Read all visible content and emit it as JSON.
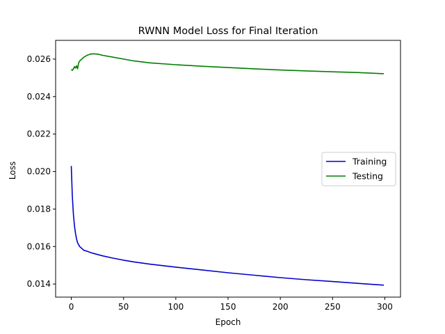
{
  "chart_data": {
    "type": "line",
    "title": "RWNN Model Loss for Final Iteration",
    "xlabel": "Epoch",
    "ylabel": "Loss",
    "xlim": [
      -15,
      315
    ],
    "ylim": [
      0.0133,
      0.027
    ],
    "x_ticks": [
      0,
      50,
      100,
      150,
      200,
      250,
      300
    ],
    "y_ticks": [
      0.014,
      0.016,
      0.018,
      0.02,
      0.022,
      0.024,
      0.026
    ],
    "x_tick_labels": [
      "0",
      "50",
      "100",
      "150",
      "200",
      "250",
      "300"
    ],
    "y_tick_labels": [
      "0.014",
      "0.016",
      "0.018",
      "0.020",
      "0.022",
      "0.024",
      "0.026"
    ],
    "grid": false,
    "legend_position": "center-right",
    "series": [
      {
        "name": "Training",
        "color": "#0000cc",
        "x": [
          0,
          1,
          2,
          3,
          4,
          5,
          6,
          8,
          10,
          12,
          15,
          20,
          30,
          40,
          50,
          60,
          75,
          100,
          125,
          150,
          175,
          200,
          225,
          250,
          275,
          299
        ],
        "y": [
          0.0203,
          0.0187,
          0.0177,
          0.0171,
          0.0167,
          0.0164,
          0.0162,
          0.016,
          0.0159,
          0.0158,
          0.01575,
          0.01565,
          0.0155,
          0.01538,
          0.01527,
          0.01518,
          0.01506,
          0.0149,
          0.01475,
          0.0146,
          0.01447,
          0.01434,
          0.01423,
          0.01413,
          0.01403,
          0.01394
        ]
      },
      {
        "name": "Testing",
        "color": "#007f00",
        "x": [
          0,
          1,
          2,
          3,
          4,
          5,
          6,
          7,
          8,
          10,
          12,
          15,
          18,
          20,
          22,
          25,
          30,
          40,
          50,
          60,
          75,
          100,
          125,
          150,
          175,
          200,
          225,
          250,
          275,
          299
        ],
        "y": [
          0.02545,
          0.0254,
          0.02548,
          0.0256,
          0.02552,
          0.02565,
          0.02548,
          0.0258,
          0.0259,
          0.026,
          0.0261,
          0.0262,
          0.02626,
          0.02628,
          0.02628,
          0.02627,
          0.0262,
          0.0261,
          0.026,
          0.0259,
          0.0258,
          0.0257,
          0.02562,
          0.02555,
          0.02548,
          0.02542,
          0.02537,
          0.02532,
          0.02528,
          0.02522
        ]
      }
    ]
  }
}
